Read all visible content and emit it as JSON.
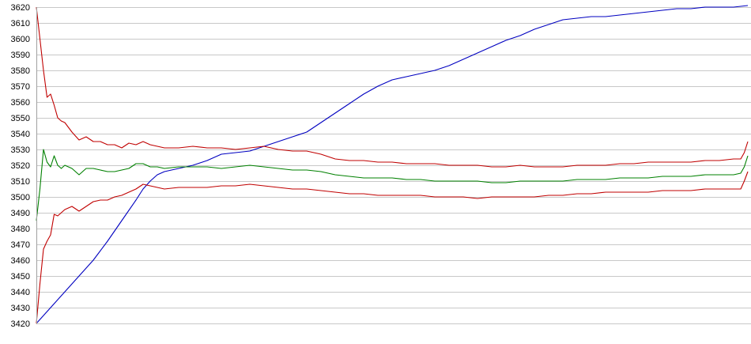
{
  "chart_data": {
    "type": "line",
    "title": "",
    "xlabel": "",
    "ylabel": "",
    "xlim": [
      0,
      100
    ],
    "ylim": [
      3420,
      3620
    ],
    "yticks": [
      3420,
      3430,
      3440,
      3450,
      3460,
      3470,
      3480,
      3490,
      3500,
      3510,
      3520,
      3530,
      3540,
      3550,
      3560,
      3570,
      3580,
      3590,
      3600,
      3610,
      3620
    ],
    "grid": true,
    "legend": "none",
    "series": [
      {
        "color": "#0000c0",
        "points": [
          [
            0,
            3420
          ],
          [
            2,
            3430
          ],
          [
            4,
            3440
          ],
          [
            6,
            3450
          ],
          [
            8,
            3460
          ],
          [
            10,
            3472
          ],
          [
            12,
            3485
          ],
          [
            14,
            3498
          ],
          [
            15,
            3505
          ],
          [
            16,
            3510
          ],
          [
            17,
            3514
          ],
          [
            18,
            3516
          ],
          [
            20,
            3518
          ],
          [
            22,
            3520
          ],
          [
            24,
            3523
          ],
          [
            26,
            3527
          ],
          [
            28,
            3528
          ],
          [
            30,
            3529
          ],
          [
            32,
            3532
          ],
          [
            34,
            3535
          ],
          [
            36,
            3538
          ],
          [
            38,
            3541
          ],
          [
            40,
            3547
          ],
          [
            42,
            3553
          ],
          [
            44,
            3559
          ],
          [
            46,
            3565
          ],
          [
            48,
            3570
          ],
          [
            50,
            3574
          ],
          [
            52,
            3576
          ],
          [
            54,
            3578
          ],
          [
            56,
            3580
          ],
          [
            58,
            3583
          ],
          [
            60,
            3587
          ],
          [
            62,
            3591
          ],
          [
            64,
            3595
          ],
          [
            66,
            3599
          ],
          [
            68,
            3602
          ],
          [
            70,
            3606
          ],
          [
            72,
            3609
          ],
          [
            74,
            3612
          ],
          [
            76,
            3613
          ],
          [
            78,
            3614
          ],
          [
            80,
            3614
          ],
          [
            82,
            3615
          ],
          [
            84,
            3616
          ],
          [
            86,
            3617
          ],
          [
            88,
            3618
          ],
          [
            90,
            3619
          ],
          [
            92,
            3619
          ],
          [
            94,
            3620
          ],
          [
            96,
            3620
          ],
          [
            98,
            3620
          ],
          [
            100,
            3621
          ]
        ]
      },
      {
        "color": "#c00000",
        "points": [
          [
            0,
            3620
          ],
          [
            0.5,
            3600
          ],
          [
            1,
            3580
          ],
          [
            1.5,
            3563
          ],
          [
            2,
            3565
          ],
          [
            2.5,
            3558
          ],
          [
            3,
            3550
          ],
          [
            3.5,
            3548
          ],
          [
            4,
            3547
          ],
          [
            5,
            3541
          ],
          [
            6,
            3536
          ],
          [
            7,
            3538
          ],
          [
            8,
            3535
          ],
          [
            9,
            3535
          ],
          [
            10,
            3533
          ],
          [
            11,
            3533
          ],
          [
            12,
            3531
          ],
          [
            13,
            3534
          ],
          [
            14,
            3533
          ],
          [
            15,
            3535
          ],
          [
            16,
            3533
          ],
          [
            17,
            3532
          ],
          [
            18,
            3531
          ],
          [
            20,
            3531
          ],
          [
            22,
            3532
          ],
          [
            24,
            3531
          ],
          [
            26,
            3531
          ],
          [
            28,
            3530
          ],
          [
            30,
            3531
          ],
          [
            32,
            3532
          ],
          [
            34,
            3530
          ],
          [
            36,
            3529
          ],
          [
            38,
            3529
          ],
          [
            40,
            3527
          ],
          [
            42,
            3524
          ],
          [
            44,
            3523
          ],
          [
            46,
            3523
          ],
          [
            48,
            3522
          ],
          [
            50,
            3522
          ],
          [
            52,
            3521
          ],
          [
            54,
            3521
          ],
          [
            56,
            3521
          ],
          [
            58,
            3520
          ],
          [
            60,
            3520
          ],
          [
            62,
            3520
          ],
          [
            64,
            3519
          ],
          [
            66,
            3519
          ],
          [
            68,
            3520
          ],
          [
            70,
            3519
          ],
          [
            72,
            3519
          ],
          [
            74,
            3519
          ],
          [
            76,
            3520
          ],
          [
            78,
            3520
          ],
          [
            80,
            3520
          ],
          [
            82,
            3521
          ],
          [
            84,
            3521
          ],
          [
            86,
            3522
          ],
          [
            88,
            3522
          ],
          [
            90,
            3522
          ],
          [
            92,
            3522
          ],
          [
            94,
            3523
          ],
          [
            96,
            3523
          ],
          [
            98,
            3524
          ],
          [
            99,
            3524
          ],
          [
            99.5,
            3528
          ],
          [
            100,
            3535
          ]
        ]
      },
      {
        "color": "#c00000",
        "points": [
          [
            0,
            3420
          ],
          [
            0.5,
            3445
          ],
          [
            1,
            3467
          ],
          [
            1.5,
            3472
          ],
          [
            2,
            3476
          ],
          [
            2.5,
            3489
          ],
          [
            3,
            3488
          ],
          [
            3.5,
            3490
          ],
          [
            4,
            3492
          ],
          [
            5,
            3494
          ],
          [
            6,
            3491
          ],
          [
            7,
            3494
          ],
          [
            8,
            3497
          ],
          [
            9,
            3498
          ],
          [
            10,
            3498
          ],
          [
            11,
            3500
          ],
          [
            12,
            3501
          ],
          [
            13,
            3503
          ],
          [
            14,
            3505
          ],
          [
            15,
            3508
          ],
          [
            16,
            3507
          ],
          [
            17,
            3506
          ],
          [
            18,
            3505
          ],
          [
            20,
            3506
          ],
          [
            22,
            3506
          ],
          [
            24,
            3506
          ],
          [
            26,
            3507
          ],
          [
            28,
            3507
          ],
          [
            30,
            3508
          ],
          [
            32,
            3507
          ],
          [
            34,
            3506
          ],
          [
            36,
            3505
          ],
          [
            38,
            3505
          ],
          [
            40,
            3504
          ],
          [
            42,
            3503
          ],
          [
            44,
            3502
          ],
          [
            46,
            3502
          ],
          [
            48,
            3501
          ],
          [
            50,
            3501
          ],
          [
            52,
            3501
          ],
          [
            54,
            3501
          ],
          [
            56,
            3500
          ],
          [
            58,
            3500
          ],
          [
            60,
            3500
          ],
          [
            62,
            3499
          ],
          [
            64,
            3500
          ],
          [
            66,
            3500
          ],
          [
            68,
            3500
          ],
          [
            70,
            3500
          ],
          [
            72,
            3501
          ],
          [
            74,
            3501
          ],
          [
            76,
            3502
          ],
          [
            78,
            3502
          ],
          [
            80,
            3503
          ],
          [
            82,
            3503
          ],
          [
            84,
            3503
          ],
          [
            86,
            3503
          ],
          [
            88,
            3504
          ],
          [
            90,
            3504
          ],
          [
            92,
            3504
          ],
          [
            94,
            3505
          ],
          [
            96,
            3505
          ],
          [
            98,
            3505
          ],
          [
            99,
            3505
          ],
          [
            99.5,
            3510
          ],
          [
            100,
            3516
          ]
        ]
      },
      {
        "color": "#008000",
        "points": [
          [
            0,
            3485
          ],
          [
            0.5,
            3505
          ],
          [
            1,
            3530
          ],
          [
            1.5,
            3522
          ],
          [
            2,
            3519
          ],
          [
            2.5,
            3526
          ],
          [
            3,
            3520
          ],
          [
            3.5,
            3518
          ],
          [
            4,
            3520
          ],
          [
            5,
            3518
          ],
          [
            6,
            3514
          ],
          [
            7,
            3518
          ],
          [
            8,
            3518
          ],
          [
            9,
            3517
          ],
          [
            10,
            3516
          ],
          [
            11,
            3516
          ],
          [
            12,
            3517
          ],
          [
            13,
            3518
          ],
          [
            14,
            3521
          ],
          [
            15,
            3521
          ],
          [
            16,
            3519
          ],
          [
            17,
            3519
          ],
          [
            18,
            3518
          ],
          [
            20,
            3519
          ],
          [
            22,
            3519
          ],
          [
            24,
            3519
          ],
          [
            26,
            3518
          ],
          [
            28,
            3519
          ],
          [
            30,
            3520
          ],
          [
            32,
            3519
          ],
          [
            34,
            3518
          ],
          [
            36,
            3517
          ],
          [
            38,
            3517
          ],
          [
            40,
            3516
          ],
          [
            42,
            3514
          ],
          [
            44,
            3513
          ],
          [
            46,
            3512
          ],
          [
            48,
            3512
          ],
          [
            50,
            3512
          ],
          [
            52,
            3511
          ],
          [
            54,
            3511
          ],
          [
            56,
            3510
          ],
          [
            58,
            3510
          ],
          [
            60,
            3510
          ],
          [
            62,
            3510
          ],
          [
            64,
            3509
          ],
          [
            66,
            3509
          ],
          [
            68,
            3510
          ],
          [
            70,
            3510
          ],
          [
            72,
            3510
          ],
          [
            74,
            3510
          ],
          [
            76,
            3511
          ],
          [
            78,
            3511
          ],
          [
            80,
            3511
          ],
          [
            82,
            3512
          ],
          [
            84,
            3512
          ],
          [
            86,
            3512
          ],
          [
            88,
            3513
          ],
          [
            90,
            3513
          ],
          [
            92,
            3513
          ],
          [
            94,
            3514
          ],
          [
            96,
            3514
          ],
          [
            98,
            3514
          ],
          [
            99,
            3515
          ],
          [
            99.5,
            3519
          ],
          [
            100,
            3526
          ]
        ]
      }
    ]
  }
}
